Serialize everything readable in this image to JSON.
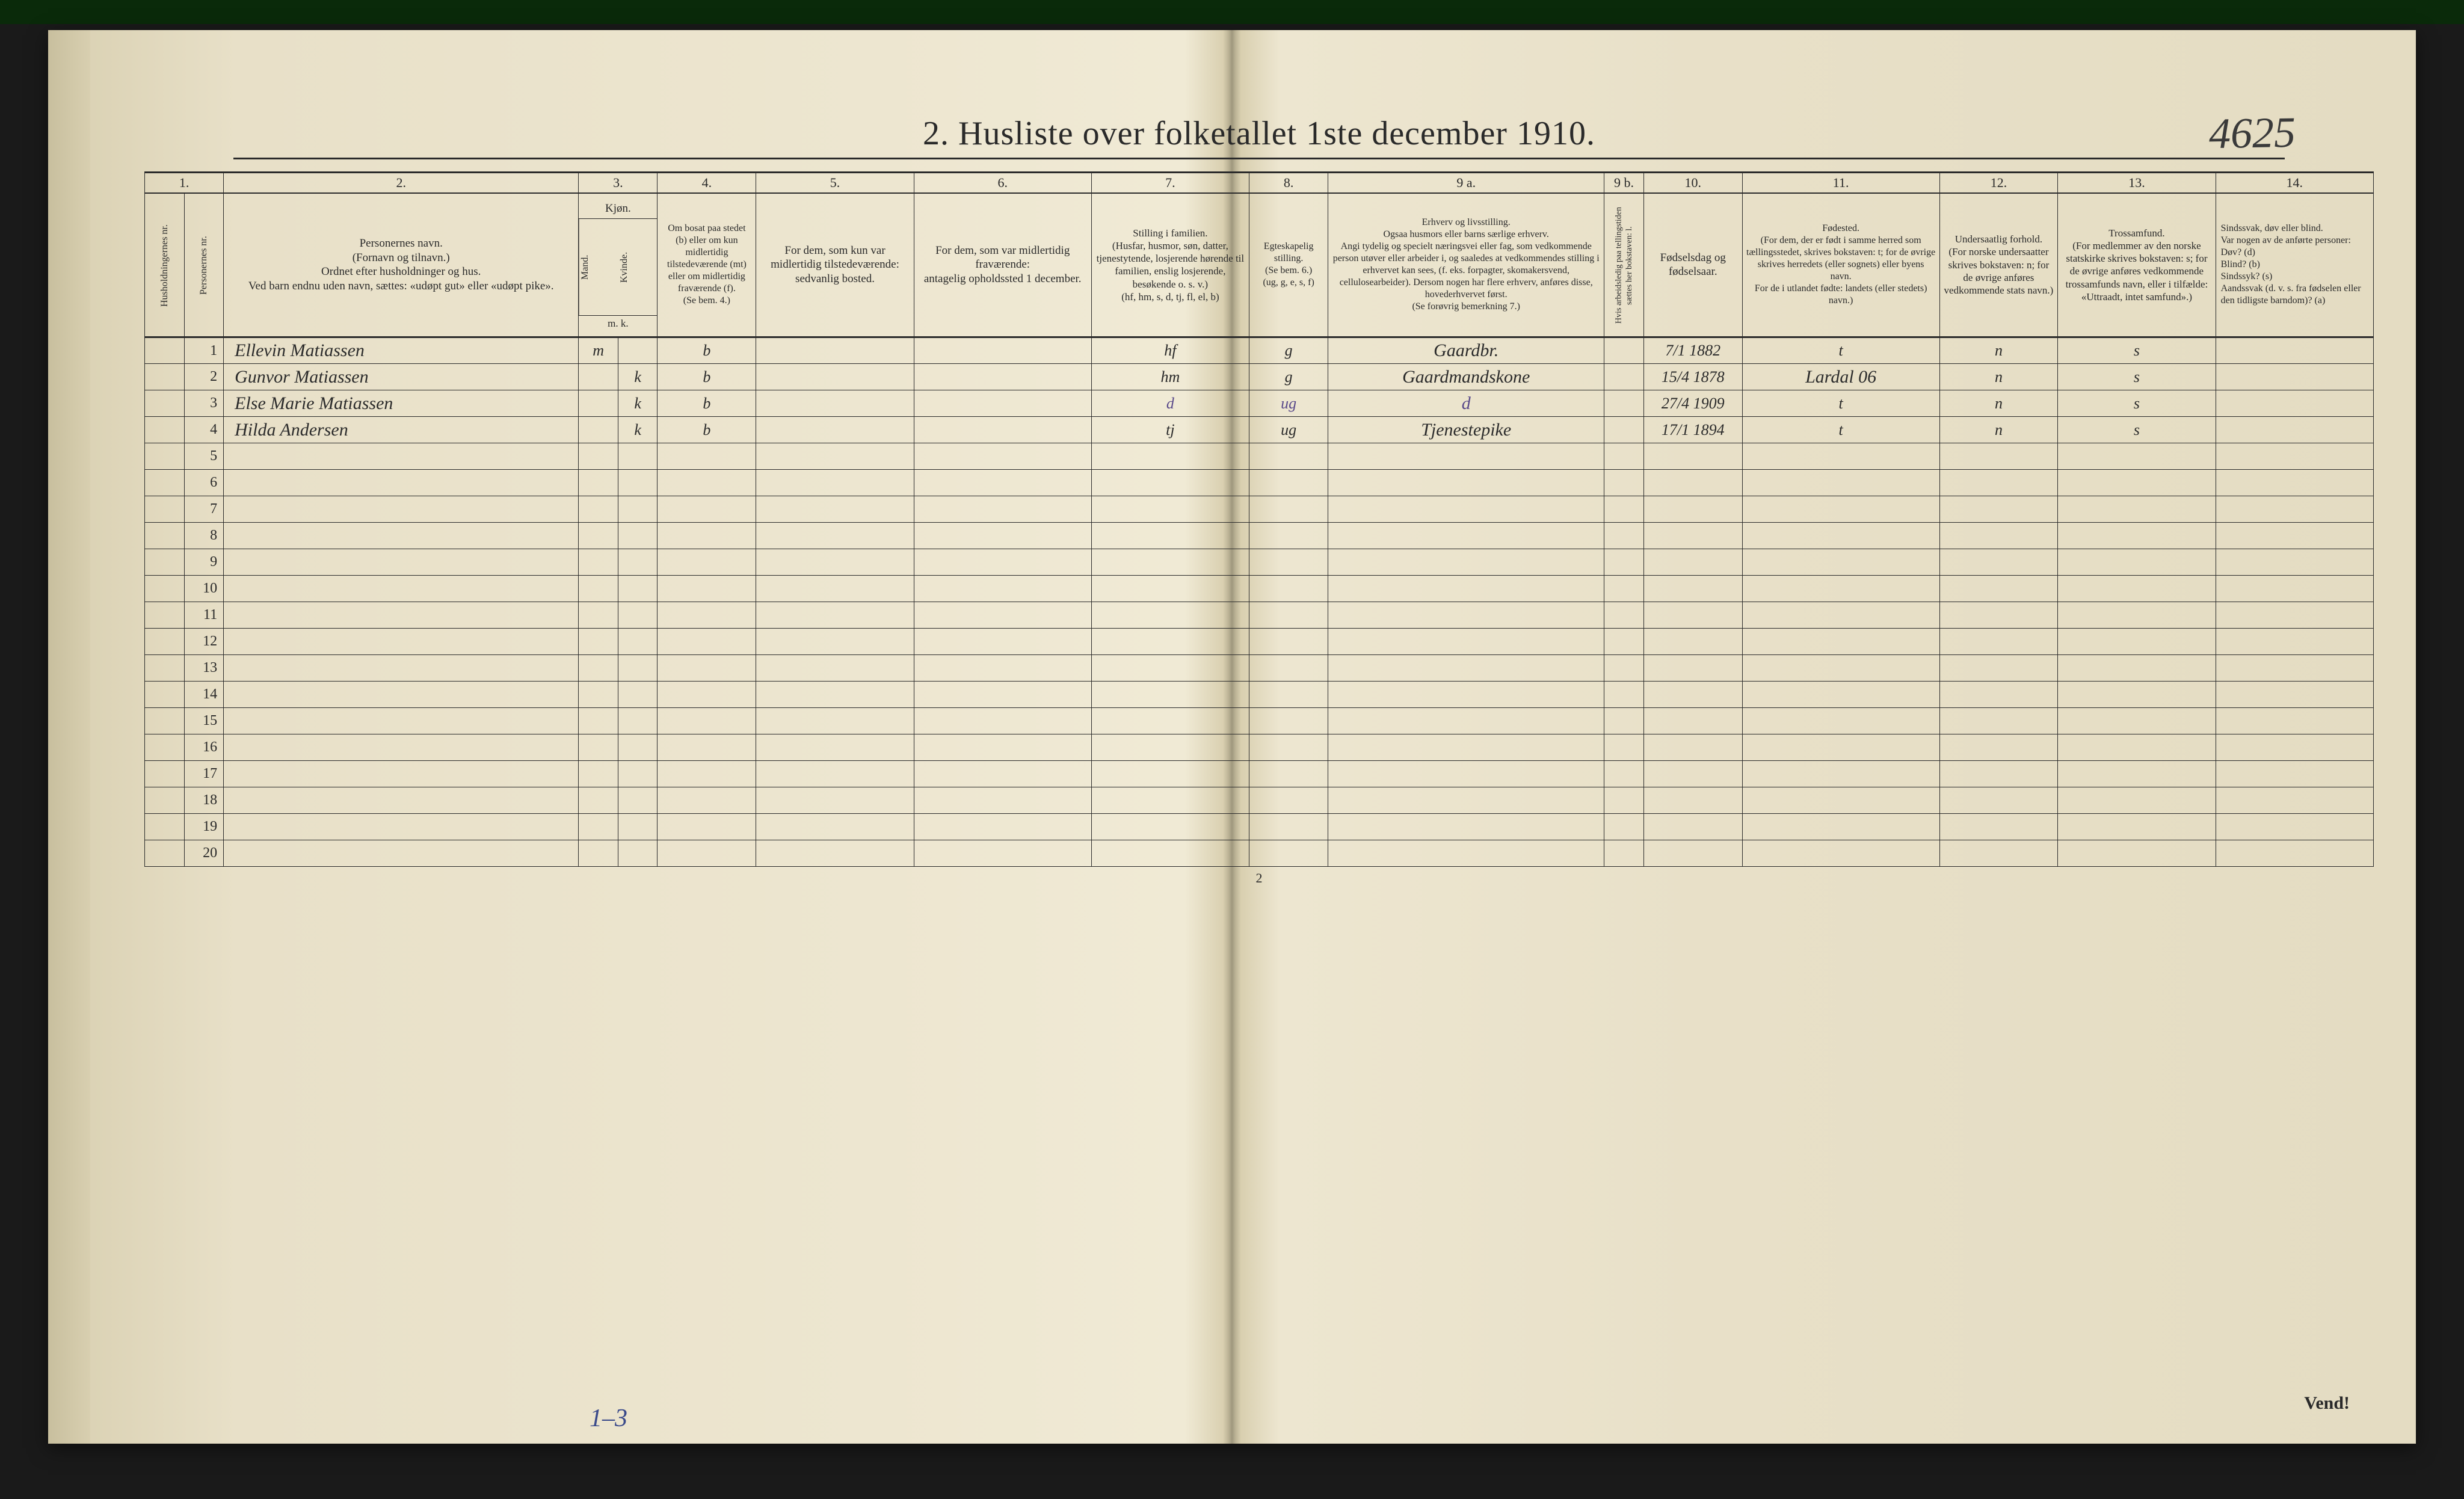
{
  "document": {
    "title": "2.  Husliste over folketallet 1ste december 1910.",
    "handwritten_topright": "4625",
    "page_number_bottom": "2",
    "vend_label": "Vend!",
    "bottom_handwriting": "1–3"
  },
  "colors": {
    "paper": "#e8e0c8",
    "paper_dark": "#d8cfb0",
    "ink": "#2a2a2a",
    "hand_ink": "#2b2b2b",
    "hand_purple": "#5a4a8a",
    "scanner_bg": "#1a1a1a"
  },
  "table": {
    "column_widths_pct": [
      2,
      2,
      18,
      2,
      2,
      5,
      8,
      9,
      8,
      4,
      14,
      2,
      5,
      10,
      6,
      8,
      8
    ],
    "colnum_row": [
      "1.",
      "2.",
      "3.",
      "4.",
      "5.",
      "6.",
      "7.",
      "8.",
      "9 a.",
      "9 b.",
      "10.",
      "11.",
      "12.",
      "13.",
      "14."
    ],
    "headers": {
      "c1": "Husholdningernes nr.",
      "c1b": "Personernes nr.",
      "c2": "Personernes navn.\n(Fornavn og tilnavn.)\nOrdnet efter husholdninger og hus.\nVed barn endnu uden navn, sættes: «udøpt gut» eller «udøpt pike».",
      "c3a": "Kjøn.",
      "c3b": "Mand.",
      "c3c": "Kvinde.",
      "c3_foot": "m.  k.",
      "c4": "Om bosat paa stedet (b) eller om kun midlertidig tilstedeværende (mt) eller om midlertidig fraværende (f).\n(Se bem. 4.)",
      "c5": "For dem, som kun var midlertidig tilstedeværende:\nsedvanlig bosted.",
      "c6": "For dem, som var midlertidig fraværende:\nantagelig opholdssted 1 december.",
      "c7": "Stilling i familien.\n(Husfar, husmor, søn, datter, tjenestytende, losjerende hørende til familien, enslig losjerende, besøkende o. s. v.)\n(hf, hm, s, d, tj, fl, el, b)",
      "c8": "Egteskapelig stilling.\n(Se bem. 6.)\n(ug, g, e, s, f)",
      "c9a": "Erhverv og livsstilling.\nOgsaa husmors eller barns særlige erhverv.\nAngi tydelig og specielt næringsvei eller fag, som vedkommende person utøver eller arbeider i, og saaledes at vedkommendes stilling i erhvervet kan sees, (f. eks. forpagter, skomakersvend, cellulosearbeider). Dersom nogen har flere erhverv, anføres disse, hovederhvervet først.\n(Se forøvrig bemerkning 7.)",
      "c9b": "Hvis arbeidsledig paa tellingstiden sættes her bokstaven: l.",
      "c10": "Fødselsdag og fødselsaar.",
      "c11": "Fødested.\n(For dem, der er født i samme herred som tællingsstedet, skrives bokstaven: t; for de øvrige skrives herredets (eller sognets) eller byens navn.\nFor de i utlandet fødte: landets (eller stedets) navn.)",
      "c12": "Undersaatlig forhold.\n(For norske undersaatter skrives bokstaven: n; for de øvrige anføres vedkommende stats navn.)",
      "c13": "Trossamfund.\n(For medlemmer av den norske statskirke skrives bokstaven: s; for de øvrige anføres vedkommende trossamfunds navn, eller i tilfælde: «Uttraadt, intet samfund».)",
      "c14": "Sindssvak, døv eller blind.\nVar nogen av de anførte personer:\nDøv?        (d)\nBlind?       (b)\nSindssyk? (s)\nAandssvak (d. v. s. fra fødselen eller den tidligste barndom)?  (a)"
    },
    "rows": [
      {
        "num": "1",
        "name": "Ellevin Matiassen",
        "sex_m": "m",
        "sex_k": "",
        "bosat": "b",
        "c5": "",
        "c6": "",
        "stilling": "hf",
        "egte": "g",
        "erhverv": "Gaardbr.",
        "c9b": "",
        "fodsel": "7/1 1882",
        "fodested": "t",
        "undersaat": "n",
        "tros": "s",
        "c14": ""
      },
      {
        "num": "2",
        "name": "Gunvor Matiassen",
        "sex_m": "",
        "sex_k": "k",
        "bosat": "b",
        "c5": "",
        "c6": "",
        "stilling": "hm",
        "egte": "g",
        "erhverv": "Gaardmandskone",
        "c9b": "",
        "fodsel": "15/4 1878",
        "fodested": "Lardal  06",
        "undersaat": "n",
        "tros": "s",
        "c14": ""
      },
      {
        "num": "3",
        "name": "Else Marie Matiassen",
        "sex_m": "",
        "sex_k": "k",
        "bosat": "b",
        "c5": "",
        "c6": "",
        "stilling": "d",
        "egte": "ug",
        "erhverv": "d",
        "c9b": "",
        "fodsel": "27/4 1909",
        "fodested": "t",
        "undersaat": "n",
        "tros": "s",
        "c14": ""
      },
      {
        "num": "4",
        "name": "Hilda Andersen",
        "sex_m": "",
        "sex_k": "k",
        "bosat": "b",
        "c5": "",
        "c6": "",
        "stilling": "tj",
        "egte": "ug",
        "erhverv": "Tjenestepike",
        "c9b": "",
        "fodsel": "17/1 1894",
        "fodested": "t",
        "undersaat": "n",
        "tros": "s",
        "c14": ""
      }
    ],
    "empty_row_count": 16,
    "total_rows": 20
  }
}
